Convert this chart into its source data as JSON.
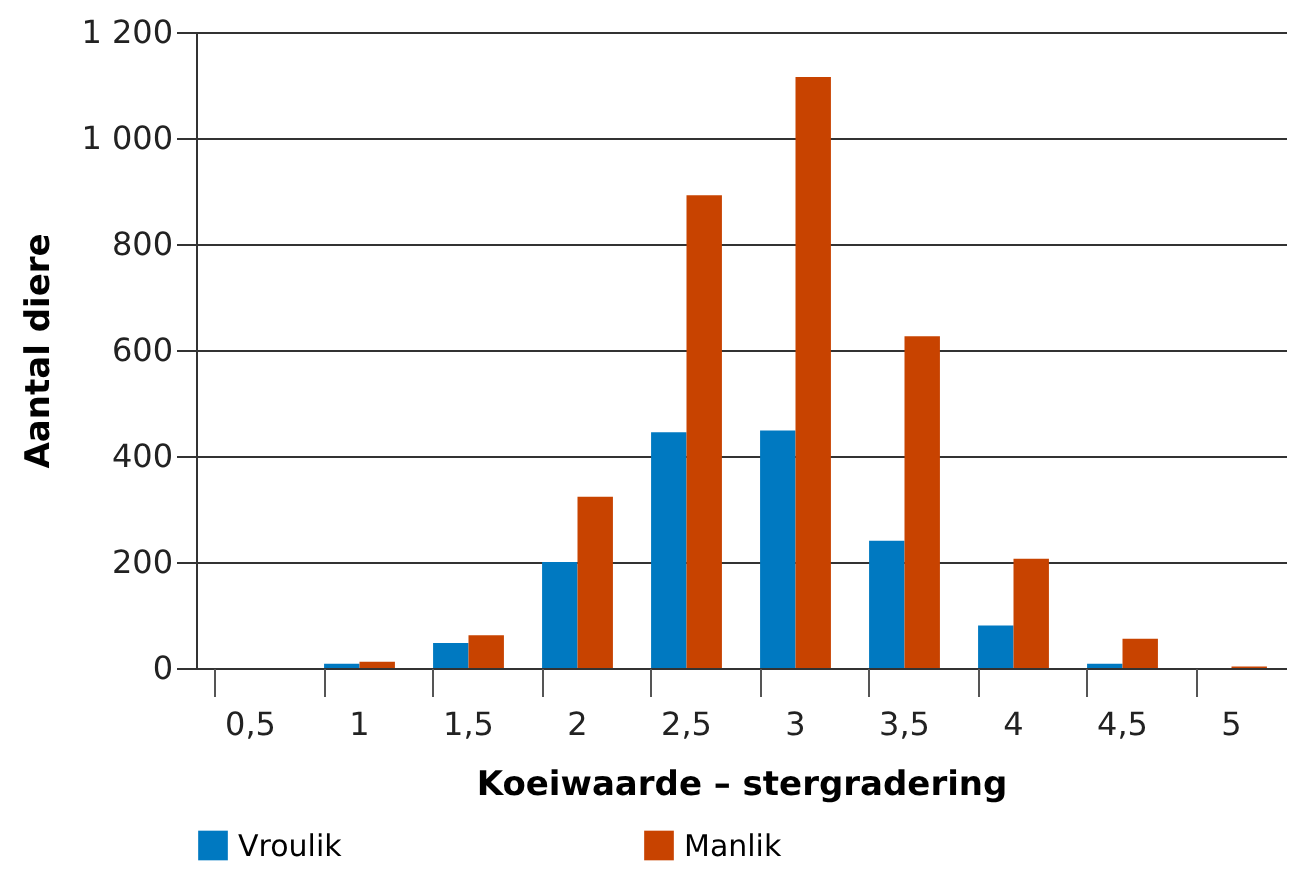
{
  "chart_data": {
    "type": "bar",
    "xlabel": "Koeiwaarde – stergradering",
    "ylabel": "Aantal diere",
    "categories": [
      "0,5",
      "1",
      "1,5",
      "2",
      "2,5",
      "3",
      "3,5",
      "4",
      "4,5",
      "5"
    ],
    "series": [
      {
        "name": "Vroulik",
        "color": "#0079c1",
        "values": [
          0,
          8,
          47,
          200,
          445,
          448,
          240,
          80,
          8,
          0
        ]
      },
      {
        "name": "Manlik",
        "color": "#c84300",
        "values": [
          0,
          12,
          62,
          323,
          892,
          1115,
          626,
          206,
          55,
          3
        ]
      }
    ],
    "ylim": [
      0,
      1200
    ],
    "yticks": [
      0,
      200,
      400,
      600,
      800,
      {
        "value": 1000,
        "label": "1 000"
      },
      {
        "value": 1200,
        "label": "1 200"
      }
    ],
    "grid": "y",
    "legend": "bottom"
  }
}
